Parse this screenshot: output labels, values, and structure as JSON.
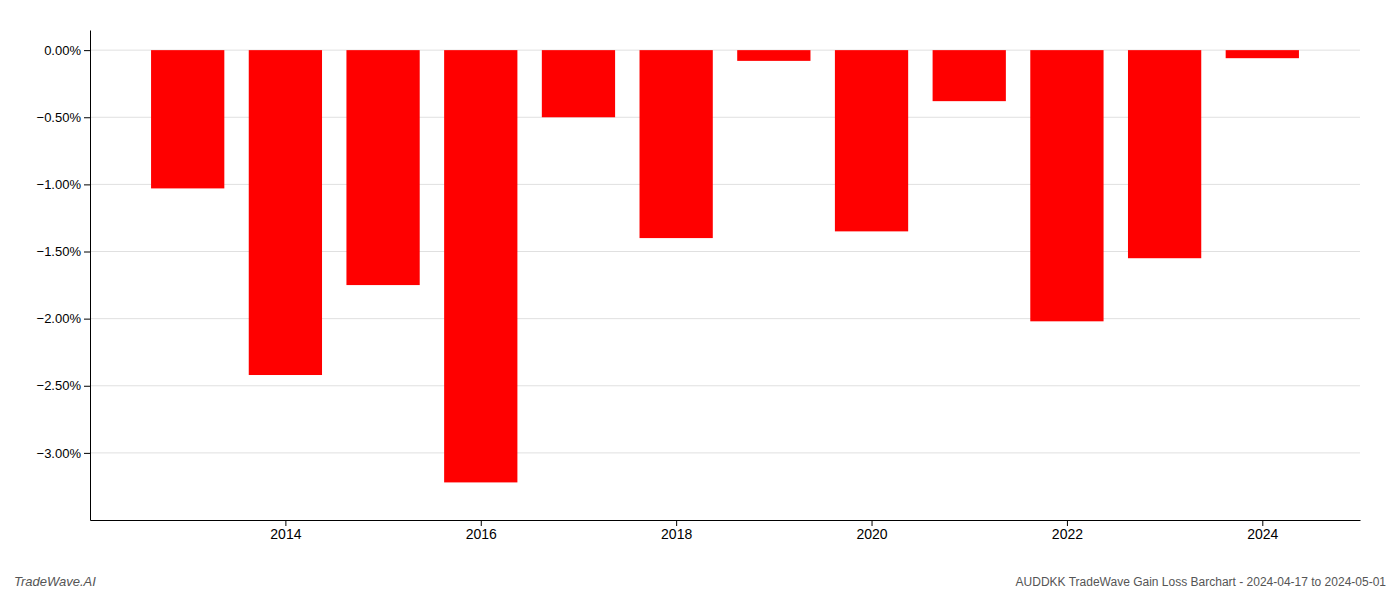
{
  "chart_data": {
    "type": "bar",
    "title": "AUDDKK TradeWave Gain Loss Barchart - 2024-04-17 to 2024-05-01",
    "annotations": [
      "TradeWave.AI"
    ],
    "x": [
      2013,
      2014,
      2015,
      2016,
      2017,
      2018,
      2019,
      2020,
      2021,
      2022,
      2023,
      2024
    ],
    "values": [
      -1.03,
      -2.42,
      -1.75,
      -3.22,
      -0.5,
      -1.4,
      -0.08,
      -1.35,
      -0.38,
      -2.02,
      -1.55,
      -0.06
    ],
    "color": "#ff0000",
    "xlim": [
      2012,
      2025
    ],
    "xticks": [
      2014,
      2016,
      2018,
      2020,
      2022,
      2024
    ],
    "ylim": [
      -3.5,
      0.15
    ],
    "yticks": [
      {
        "value": 0.0,
        "label": "0.00%"
      },
      {
        "value": -0.5,
        "label": "−0.50%"
      },
      {
        "value": -1.0,
        "label": "−1.00%"
      },
      {
        "value": -1.5,
        "label": "−1.50%"
      },
      {
        "value": -2.0,
        "label": "−2.00%"
      },
      {
        "value": -2.5,
        "label": "−2.50%"
      },
      {
        "value": -3.0,
        "label": "−3.00%"
      }
    ],
    "grid": true
  }
}
